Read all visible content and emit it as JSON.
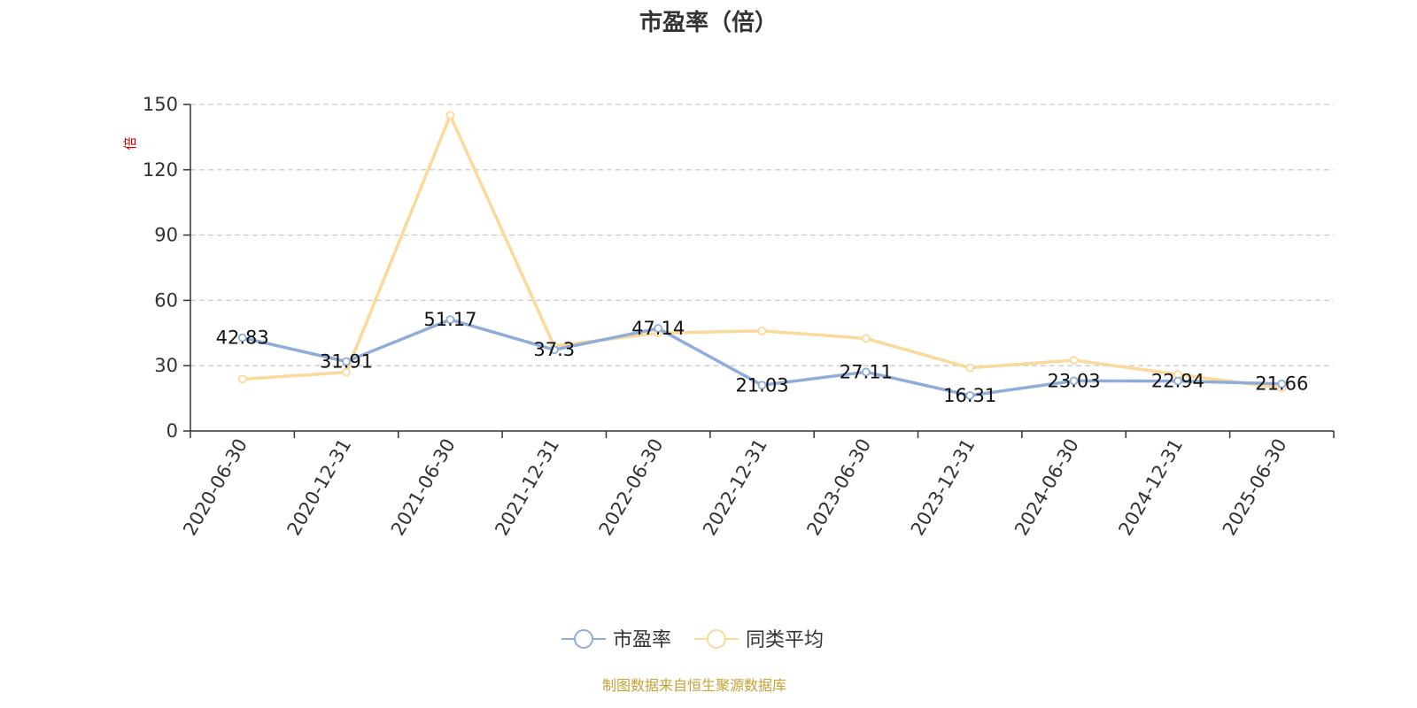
{
  "chart_data": {
    "type": "line",
    "title": "市盈率（倍）",
    "y_unit": "倍",
    "x": [
      "2020-06-30",
      "2020-12-31",
      "2021-06-30",
      "2021-12-31",
      "2022-06-30",
      "2022-12-31",
      "2023-06-30",
      "2023-12-31",
      "2024-06-30",
      "2024-12-31",
      "2025-06-30"
    ],
    "ylim": [
      0,
      150
    ],
    "yticks": [
      0,
      30,
      60,
      90,
      120,
      150
    ],
    "grid": true,
    "legend_position": "bottom",
    "series": [
      {
        "name": "市盈率",
        "color": "#8fadd8",
        "values": [
          42.83,
          31.91,
          51.17,
          37.3,
          47.14,
          21.03,
          27.11,
          16.31,
          23.03,
          22.94,
          21.66
        ],
        "labels": [
          "42.83",
          "31.91",
          "51.17",
          "37.3",
          "47.14",
          "21.03",
          "27.11",
          "16.31",
          "23.03",
          "22.94",
          "21.66"
        ]
      },
      {
        "name": "同类平均",
        "color": "#fbd99a",
        "values": [
          23.8,
          27,
          145,
          39,
          45,
          46,
          42.5,
          29,
          32.5,
          26,
          19.7
        ]
      }
    ],
    "source": "制图数据来自恒生聚源数据库",
    "source_color": "#c8a034"
  }
}
